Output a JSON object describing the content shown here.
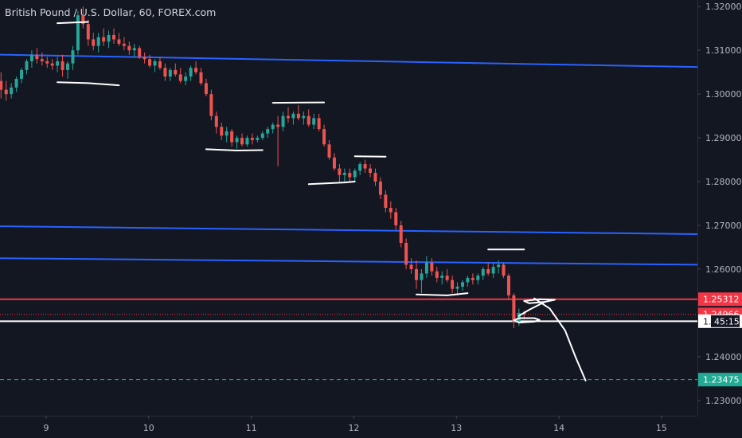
{
  "chart_data": {
    "type": "candlestick",
    "title": "British Pound / U.S. Dollar, 60, FOREX.com",
    "symbol": "British Pound / U.S. Dollar",
    "interval": "60",
    "source": "FOREX.com",
    "x_tick_labels": [
      "9",
      "10",
      "11",
      "12",
      "13",
      "14",
      "15"
    ],
    "x_ticks": [
      9,
      10,
      11,
      12,
      13,
      14,
      15
    ],
    "y_tick_labels": [
      "1.32000",
      "1.31000",
      "1.30000",
      "1.29000",
      "1.28000",
      "1.27000",
      "1.26000",
      "1.24000",
      "1.23000"
    ],
    "y_ticks": [
      1.32,
      1.31,
      1.3,
      1.29,
      1.28,
      1.27,
      1.26,
      1.24,
      1.23
    ],
    "xlim": [
      8.55,
      15.35
    ],
    "ylim": [
      1.2265,
      1.3215
    ],
    "grid": false,
    "candles": [
      [
        8.56,
        1.303,
        1.305,
        1.299,
        1.301
      ],
      [
        8.61,
        1.301,
        1.303,
        1.2985,
        1.3
      ],
      [
        8.66,
        1.3,
        1.3025,
        1.299,
        1.3015
      ],
      [
        8.71,
        1.3015,
        1.304,
        1.3005,
        1.3035
      ],
      [
        8.76,
        1.3035,
        1.306,
        1.3025,
        1.3055
      ],
      [
        8.81,
        1.3055,
        1.308,
        1.3045,
        1.3075
      ],
      [
        8.86,
        1.3075,
        1.31,
        1.306,
        1.309
      ],
      [
        8.91,
        1.309,
        1.3105,
        1.307,
        1.308
      ],
      [
        8.96,
        1.308,
        1.3095,
        1.3065,
        1.3075
      ],
      [
        9.01,
        1.3075,
        1.3085,
        1.306,
        1.307
      ],
      [
        9.06,
        1.307,
        1.308,
        1.3055,
        1.3065
      ],
      [
        9.11,
        1.3065,
        1.3085,
        1.305,
        1.3075
      ],
      [
        9.16,
        1.3075,
        1.309,
        1.304,
        1.3055
      ],
      [
        9.21,
        1.3055,
        1.3075,
        1.3035,
        1.307
      ],
      [
        9.26,
        1.307,
        1.311,
        1.3055,
        1.31
      ],
      [
        9.31,
        1.31,
        1.319,
        1.309,
        1.318
      ],
      [
        9.36,
        1.318,
        1.32,
        1.315,
        1.316
      ],
      [
        9.41,
        1.316,
        1.317,
        1.311,
        1.3125
      ],
      [
        9.46,
        1.3125,
        1.314,
        1.31,
        1.311
      ],
      [
        9.51,
        1.311,
        1.314,
        1.3095,
        1.313
      ],
      [
        9.56,
        1.313,
        1.315,
        1.311,
        1.312
      ],
      [
        9.61,
        1.312,
        1.3145,
        1.3105,
        1.3135
      ],
      [
        9.66,
        1.3135,
        1.315,
        1.3115,
        1.3125
      ],
      [
        9.71,
        1.3125,
        1.314,
        1.311,
        1.3115
      ],
      [
        9.76,
        1.3115,
        1.313,
        1.31,
        1.311
      ],
      [
        9.81,
        1.311,
        1.312,
        1.309,
        1.31
      ],
      [
        9.86,
        1.31,
        1.3115,
        1.3085,
        1.3105
      ],
      [
        9.91,
        1.3105,
        1.311,
        1.308,
        1.3085
      ],
      [
        9.96,
        1.3085,
        1.3095,
        1.307,
        1.308
      ],
      [
        10.01,
        1.308,
        1.309,
        1.306,
        1.3065
      ],
      [
        10.06,
        1.3065,
        1.308,
        1.305,
        1.3075
      ],
      [
        10.11,
        1.3075,
        1.3085,
        1.3055,
        1.306
      ],
      [
        10.16,
        1.306,
        1.307,
        1.303,
        1.304
      ],
      [
        10.21,
        1.304,
        1.306,
        1.303,
        1.3055
      ],
      [
        10.26,
        1.3055,
        1.307,
        1.304,
        1.3045
      ],
      [
        10.31,
        1.3045,
        1.306,
        1.3025,
        1.303
      ],
      [
        10.36,
        1.303,
        1.305,
        1.302,
        1.304
      ],
      [
        10.41,
        1.304,
        1.3065,
        1.303,
        1.306
      ],
      [
        10.46,
        1.306,
        1.3075,
        1.3045,
        1.305
      ],
      [
        10.51,
        1.305,
        1.306,
        1.302,
        1.3025
      ],
      [
        10.56,
        1.3025,
        1.3035,
        1.2995,
        1.3
      ],
      [
        10.61,
        1.3,
        1.301,
        1.294,
        1.295
      ],
      [
        10.66,
        1.295,
        1.296,
        1.291,
        1.2925
      ],
      [
        10.71,
        1.2925,
        1.2935,
        1.2895,
        1.2905
      ],
      [
        10.76,
        1.2905,
        1.2925,
        1.289,
        1.2915
      ],
      [
        10.81,
        1.2915,
        1.292,
        1.288,
        1.289
      ],
      [
        10.86,
        1.289,
        1.2905,
        1.2875,
        1.29
      ],
      [
        10.91,
        1.29,
        1.291,
        1.288,
        1.2885
      ],
      [
        10.96,
        1.2885,
        1.2905,
        1.288,
        1.29
      ],
      [
        11.01,
        1.29,
        1.291,
        1.2885,
        1.2895
      ],
      [
        11.06,
        1.2895,
        1.2905,
        1.289,
        1.29
      ],
      [
        11.11,
        1.29,
        1.2915,
        1.2895,
        1.291
      ],
      [
        11.16,
        1.291,
        1.2925,
        1.29,
        1.292
      ],
      [
        11.21,
        1.292,
        1.2935,
        1.291,
        1.293
      ],
      [
        11.26,
        1.293,
        1.295,
        1.2835,
        1.2925
      ],
      [
        11.31,
        1.2925,
        1.296,
        1.2915,
        1.295
      ],
      [
        11.36,
        1.295,
        1.297,
        1.2935,
        1.2945
      ],
      [
        11.41,
        1.2945,
        1.296,
        1.293,
        1.2955
      ],
      [
        11.46,
        1.2955,
        1.2975,
        1.294,
        1.2945
      ],
      [
        11.51,
        1.2945,
        1.296,
        1.293,
        1.295
      ],
      [
        11.56,
        1.295,
        1.2965,
        1.2925,
        1.293
      ],
      [
        11.61,
        1.293,
        1.2955,
        1.292,
        1.2945
      ],
      [
        11.66,
        1.2945,
        1.2955,
        1.2915,
        1.292
      ],
      [
        11.71,
        1.292,
        1.293,
        1.288,
        1.2885
      ],
      [
        11.76,
        1.2885,
        1.2895,
        1.285,
        1.2855
      ],
      [
        11.81,
        1.2855,
        1.2865,
        1.2825,
        1.283
      ],
      [
        11.86,
        1.283,
        1.284,
        1.28,
        1.2815
      ],
      [
        11.91,
        1.2815,
        1.283,
        1.28,
        1.282
      ],
      [
        11.96,
        1.282,
        1.283,
        1.28,
        1.281
      ],
      [
        12.01,
        1.281,
        1.283,
        1.28,
        1.2825
      ],
      [
        12.06,
        1.2825,
        1.2845,
        1.2815,
        1.284
      ],
      [
        12.11,
        1.284,
        1.285,
        1.282,
        1.283
      ],
      [
        12.16,
        1.283,
        1.284,
        1.281,
        1.282
      ],
      [
        12.21,
        1.282,
        1.283,
        1.279,
        1.28
      ],
      [
        12.26,
        1.28,
        1.281,
        1.276,
        1.277
      ],
      [
        12.31,
        1.277,
        1.278,
        1.273,
        1.274
      ],
      [
        12.36,
        1.274,
        1.2755,
        1.2715,
        1.273
      ],
      [
        12.41,
        1.273,
        1.274,
        1.269,
        1.27
      ],
      [
        12.46,
        1.27,
        1.271,
        1.265,
        1.266
      ],
      [
        12.51,
        1.266,
        1.267,
        1.26,
        1.261
      ],
      [
        12.56,
        1.261,
        1.2625,
        1.259,
        1.26
      ],
      [
        12.61,
        1.26,
        1.262,
        1.2555,
        1.2575
      ],
      [
        12.66,
        1.2575,
        1.26,
        1.2545,
        1.259
      ],
      [
        12.71,
        1.259,
        1.263,
        1.258,
        1.2615
      ],
      [
        12.76,
        1.2615,
        1.2625,
        1.2585,
        1.2595
      ],
      [
        12.81,
        1.2595,
        1.2605,
        1.257,
        1.258
      ],
      [
        12.86,
        1.258,
        1.2595,
        1.2565,
        1.2585
      ],
      [
        12.91,
        1.2585,
        1.26,
        1.257,
        1.2575
      ],
      [
        12.96,
        1.2575,
        1.2585,
        1.2545,
        1.2555
      ],
      [
        13.01,
        1.2555,
        1.257,
        1.254,
        1.256
      ],
      [
        13.06,
        1.256,
        1.2575,
        1.255,
        1.257
      ],
      [
        13.11,
        1.257,
        1.2585,
        1.256,
        1.258
      ],
      [
        13.16,
        1.258,
        1.259,
        1.2565,
        1.2575
      ],
      [
        13.21,
        1.2575,
        1.259,
        1.2565,
        1.2585
      ],
      [
        13.26,
        1.2585,
        1.2605,
        1.2575,
        1.26
      ],
      [
        13.31,
        1.26,
        1.2615,
        1.2585,
        1.259
      ],
      [
        13.36,
        1.259,
        1.2615,
        1.258,
        1.2605
      ],
      [
        13.41,
        1.2605,
        1.262,
        1.259,
        1.261
      ],
      [
        13.46,
        1.261,
        1.2615,
        1.258,
        1.2585
      ],
      [
        13.51,
        1.2585,
        1.259,
        1.253,
        1.254
      ],
      [
        13.56,
        1.254,
        1.2545,
        1.2465,
        1.248
      ],
      [
        13.61,
        1.248,
        1.251,
        1.247,
        1.25
      ],
      [
        13.66,
        1.25,
        1.2505,
        1.2485,
        1.2497
      ]
    ],
    "horizontal_levels": [
      {
        "price": 1.25312,
        "color": "#f23645",
        "style": "solid",
        "label": "1.25312"
      },
      {
        "price": 1.24966,
        "color": "#f23645",
        "style": "dotted",
        "label": "1.24966"
      },
      {
        "price": 1.2481,
        "color": "#ffffff",
        "style": "solid",
        "label": "1.",
        "countdown": "45:15"
      },
      {
        "price": 1.23475,
        "color": "#22ab94",
        "style": "dashed",
        "label": "1.23475"
      }
    ],
    "trend_lines": [
      {
        "color": "#2962ff",
        "from": [
          8.55,
          1.309
        ],
        "to": [
          15.35,
          1.3062
        ]
      },
      {
        "color": "#2962ff",
        "from": [
          8.55,
          1.2698
        ],
        "to": [
          15.35,
          1.268
        ]
      },
      {
        "color": "#2962ff",
        "from": [
          8.55,
          1.2625
        ],
        "to": [
          15.35,
          1.261
        ]
      }
    ],
    "annotations": [
      {
        "type": "stroke",
        "points": [
          [
            9.11,
            1.3162
          ],
          [
            9.41,
            1.3165
          ]
        ]
      },
      {
        "type": "stroke",
        "points": [
          [
            9.11,
            1.3027
          ],
          [
            9.41,
            1.3025
          ],
          [
            9.71,
            1.302
          ]
        ]
      },
      {
        "type": "stroke",
        "points": [
          [
            10.56,
            1.2874
          ],
          [
            10.86,
            1.2871
          ],
          [
            11.11,
            1.2872
          ]
        ]
      },
      {
        "type": "stroke",
        "points": [
          [
            11.21,
            1.298
          ],
          [
            11.71,
            1.2981
          ]
        ]
      },
      {
        "type": "stroke",
        "points": [
          [
            11.56,
            1.2794
          ],
          [
            11.91,
            1.2798
          ],
          [
            12.01,
            1.28
          ]
        ]
      },
      {
        "type": "stroke",
        "points": [
          [
            12.01,
            1.2858
          ],
          [
            12.31,
            1.2857
          ]
        ]
      },
      {
        "type": "stroke",
        "points": [
          [
            12.61,
            1.2542
          ],
          [
            12.91,
            1.254
          ],
          [
            13.11,
            1.2545
          ]
        ]
      },
      {
        "type": "stroke",
        "points": [
          [
            13.31,
            1.2645
          ],
          [
            13.66,
            1.2645
          ]
        ]
      },
      {
        "type": "stroke",
        "points": [
          [
            13.56,
            1.2483
          ],
          [
            13.61,
            1.2478
          ],
          [
            13.76,
            1.248
          ],
          [
            13.81,
            1.2484
          ],
          [
            13.76,
            1.2488
          ],
          [
            13.61,
            1.2488
          ],
          [
            13.56,
            1.2483
          ]
        ]
      },
      {
        "type": "stroke",
        "points": [
          [
            13.61,
            1.2493
          ],
          [
            13.71,
            1.2507
          ],
          [
            13.86,
            1.2525
          ]
        ]
      },
      {
        "type": "stroke",
        "points": [
          [
            13.66,
            1.2527
          ],
          [
            13.81,
            1.2531
          ],
          [
            13.96,
            1.253
          ],
          [
            13.86,
            1.2525
          ],
          [
            13.71,
            1.2522
          ],
          [
            13.66,
            1.2527
          ]
        ]
      },
      {
        "type": "stroke",
        "points": [
          [
            13.76,
            1.2533
          ],
          [
            13.91,
            1.251
          ],
          [
            14.06,
            1.246
          ],
          [
            14.16,
            1.24
          ],
          [
            14.26,
            1.2345
          ]
        ]
      }
    ],
    "colors": {
      "up": "#26a69a",
      "down": "#ef5350",
      "background": "#131722",
      "axis_text": "#b2b5be",
      "drawing": "#ffffff"
    }
  }
}
